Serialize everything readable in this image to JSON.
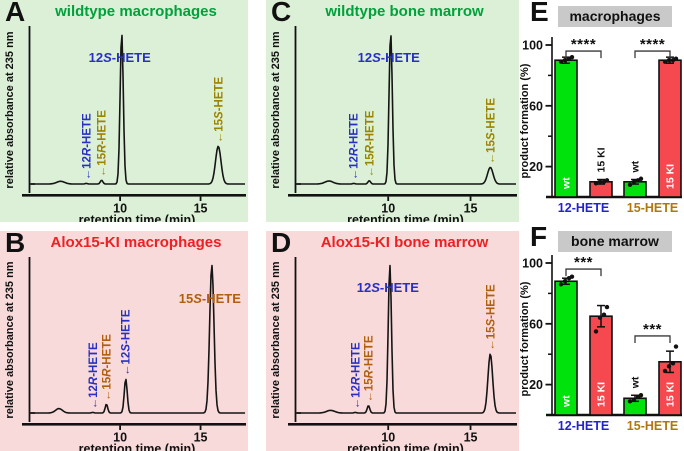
{
  "figure": {
    "description": "HPLC chromatograms and product formation bar charts",
    "panel_letters": [
      "A",
      "B",
      "C",
      "D",
      "E",
      "F"
    ]
  },
  "colors": {
    "bg_wildtype": "#dcf0d7",
    "bg_ki": "#f9dada",
    "title_wildtype": "#00a13c",
    "title_ki": "#ed2024",
    "blue": "#2830c4",
    "warm_green_panel": "#9b8300",
    "warm_pink_panel": "#b05f10",
    "bar_green": "#00e20c",
    "bar_red": "#f6494f",
    "xlabel_12": "#2424cf",
    "xlabel_15": "#b0780a",
    "title_box_bg": "#c9c9c9",
    "axis": "#111111",
    "trace": "#151515"
  },
  "chart_data": [
    {
      "type": "line",
      "panel": "A",
      "title": "wildtype macrophages",
      "bg": "wildtype",
      "xlabel": "retention time (min)",
      "ylabel": "relative absorbance at 235 nm",
      "x_ticks": [
        10,
        15
      ],
      "x_range_min": [
        4.4,
        17.7
      ],
      "baseline_bump": {
        "retention_min": 6.3,
        "rel_height": 0.018,
        "sigma": 0.35
      },
      "peaks": [
        {
          "name": "12R-HETE",
          "retention_min": 7.9,
          "rel_height": 0.004,
          "sigma": 0.1,
          "label": {
            "rotated": true,
            "arrow": true,
            "color_role": "blue"
          }
        },
        {
          "name": "15R-HETE",
          "retention_min": 8.85,
          "rel_height": 0.025,
          "sigma": 0.11,
          "label": {
            "rotated": true,
            "arrow": true,
            "color_role": "warm"
          }
        },
        {
          "name": "12S-HETE",
          "retention_min": 10.1,
          "rel_height": 1.0,
          "sigma": 0.14,
          "label": {
            "rotated": false,
            "arrow": false,
            "color_role": "blue"
          }
        },
        {
          "name": "15S-HETE",
          "retention_min": 16.1,
          "rel_height": 0.25,
          "sigma": 0.24,
          "label": {
            "rotated": true,
            "arrow": true,
            "color_role": "warm"
          }
        }
      ]
    },
    {
      "type": "line",
      "panel": "B",
      "title": "Alox15-KI macrophages",
      "bg": "ki",
      "xlabel": "retention time (min)",
      "ylabel": "relative absorbance at 235 nm",
      "x_ticks": [
        10,
        15
      ],
      "x_range_min": [
        4.4,
        17.7
      ],
      "baseline_bump": {
        "retention_min": 6.2,
        "rel_height": 0.03,
        "sigma": 0.3
      },
      "peaks": [
        {
          "name": "12R-HETE",
          "retention_min": 8.3,
          "rel_height": 0.004,
          "sigma": 0.1,
          "label": {
            "rotated": true,
            "arrow": true,
            "color_role": "blue"
          }
        },
        {
          "name": "15R-HETE",
          "retention_min": 9.15,
          "rel_height": 0.06,
          "sigma": 0.11,
          "label": {
            "rotated": true,
            "arrow": true,
            "color_role": "warm"
          }
        },
        {
          "name": "12S-HETE",
          "retention_min": 10.35,
          "rel_height": 0.23,
          "sigma": 0.13,
          "label": {
            "rotated": true,
            "arrow": true,
            "color_role": "blue"
          }
        },
        {
          "name": "15S-HETE",
          "retention_min": 15.7,
          "rel_height": 1.0,
          "sigma": 0.19,
          "label": {
            "rotated": false,
            "arrow": false,
            "color_role": "warm"
          }
        }
      ]
    },
    {
      "type": "line",
      "panel": "C",
      "title": "wildtype bone marrow",
      "bg": "wildtype",
      "xlabel": "retention time (min)",
      "ylabel": "relative absorbance at 235 nm",
      "x_ticks": [
        10,
        15
      ],
      "x_range_min": [
        4.4,
        17.7
      ],
      "baseline_bump": {
        "retention_min": 6.4,
        "rel_height": 0.02,
        "sigma": 0.35
      },
      "peaks": [
        {
          "name": "12R-HETE",
          "retention_min": 7.9,
          "rel_height": 0.004,
          "sigma": 0.1,
          "label": {
            "rotated": true,
            "arrow": true,
            "color_role": "blue"
          }
        },
        {
          "name": "15R-HETE",
          "retention_min": 8.85,
          "rel_height": 0.022,
          "sigma": 0.11,
          "label": {
            "rotated": true,
            "arrow": true,
            "color_role": "warm"
          }
        },
        {
          "name": "12S-HETE",
          "retention_min": 10.15,
          "rel_height": 1.0,
          "sigma": 0.14,
          "label": {
            "rotated": false,
            "arrow": false,
            "color_role": "blue"
          }
        },
        {
          "name": "15S-HETE",
          "retention_min": 16.2,
          "rel_height": 0.11,
          "sigma": 0.24,
          "label": {
            "rotated": true,
            "arrow": true,
            "color_role": "warm"
          }
        }
      ]
    },
    {
      "type": "line",
      "panel": "D",
      "title": "Alox15-KI bone marrow",
      "bg": "ki",
      "xlabel": "retention time (min)",
      "ylabel": "relative absorbance at 235 nm",
      "x_ticks": [
        10,
        15
      ],
      "x_range_min": [
        4.4,
        17.7
      ],
      "baseline_bump": {
        "retention_min": 6.5,
        "rel_height": 0.018,
        "sigma": 0.35
      },
      "peaks": [
        {
          "name": "12R-HETE",
          "retention_min": 8.0,
          "rel_height": 0.004,
          "sigma": 0.1,
          "label": {
            "rotated": true,
            "arrow": true,
            "color_role": "blue"
          }
        },
        {
          "name": "15R-HETE",
          "retention_min": 8.8,
          "rel_height": 0.05,
          "sigma": 0.11,
          "label": {
            "rotated": true,
            "arrow": true,
            "color_role": "warm"
          }
        },
        {
          "name": "12S-HETE",
          "retention_min": 10.1,
          "rel_height": 1.0,
          "sigma": 0.14,
          "label": {
            "rotated": false,
            "arrow": false,
            "color_role": "blue"
          }
        },
        {
          "name": "15S-HETE",
          "retention_min": 16.2,
          "rel_height": 0.4,
          "sigma": 0.2,
          "label": {
            "rotated": true,
            "arrow": true,
            "color_role": "warm"
          }
        }
      ]
    },
    {
      "type": "bar",
      "panel": "E",
      "title": "macrophages",
      "ylabel": "product formation (%)",
      "ylim": [
        0,
        100
      ],
      "y_ticks": [
        20,
        60,
        100
      ],
      "y_minor_ticks": [
        40,
        80
      ],
      "groups": [
        {
          "label": "12-HETE",
          "significance": "****",
          "bracket_value": 96,
          "bars": [
            {
              "name": "wt",
              "value": 90,
              "sd": 2,
              "points": [
                89,
                90,
                91,
                92
              ],
              "color": "green",
              "label_inside": true
            },
            {
              "name": "15 KI",
              "value": 10,
              "sd": 1.5,
              "points": [
                9,
                10,
                10,
                11
              ],
              "color": "red",
              "label_inside": false
            }
          ]
        },
        {
          "label": "15-HETE",
          "significance": "****",
          "bracket_value": 96,
          "bars": [
            {
              "name": "wt",
              "value": 10,
              "sd": 1.5,
              "points": [
                8,
                10,
                11,
                12
              ],
              "color": "green",
              "label_inside": false
            },
            {
              "name": "15 KI",
              "value": 90,
              "sd": 2,
              "points": [
                89,
                90,
                90,
                91
              ],
              "color": "red",
              "label_inside": true
            }
          ]
        }
      ]
    },
    {
      "type": "bar",
      "panel": "F",
      "title": "bone marrow",
      "ylabel": "product formation (%)",
      "ylim": [
        0,
        100
      ],
      "y_ticks": [
        20,
        60,
        100
      ],
      "y_minor_ticks": [
        40,
        80
      ],
      "groups": [
        {
          "label": "12-HETE",
          "significance": "***",
          "bracket_value": 96,
          "bars": [
            {
              "name": "wt",
              "value": 88,
              "sd": 2,
              "points": [
                86,
                88,
                90,
                91
              ],
              "color": "green",
              "label_inside": true
            },
            {
              "name": "15 KI",
              "value": 65,
              "sd": 7,
              "points": [
                55,
                64,
                66,
                71
              ],
              "color": "red",
              "label_inside": true
            }
          ]
        },
        {
          "label": "15-HETE",
          "significance": "***",
          "bracket_value": 52,
          "bars": [
            {
              "name": "wt",
              "value": 11,
              "sd": 2,
              "points": [
                9,
                10,
                12,
                13
              ],
              "color": "green",
              "label_inside": false
            },
            {
              "name": "15 KI",
              "value": 35,
              "sd": 7,
              "points": [
                29,
                32,
                34,
                45
              ],
              "color": "red",
              "label_inside": true
            }
          ]
        }
      ]
    }
  ]
}
